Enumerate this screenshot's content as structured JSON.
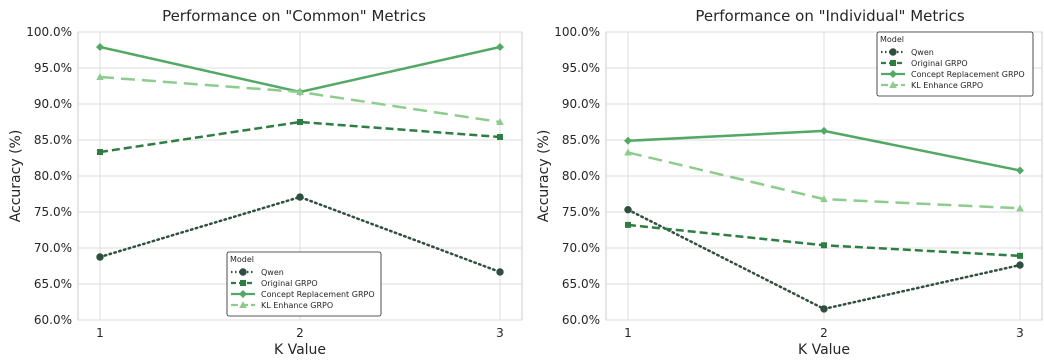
{
  "chart_data": [
    {
      "type": "line",
      "title": "Performance on \"Common\" Metrics",
      "xlabel": "K Value",
      "ylabel": "Accuracy (%)",
      "x": [
        1,
        2,
        3
      ],
      "ylim": [
        0.6,
        1.0
      ],
      "yticks": [
        "60.0%",
        "65.0%",
        "70.0%",
        "75.0%",
        "80.0%",
        "85.0%",
        "90.0%",
        "95.0%",
        "100.0%"
      ],
      "yticks_values": [
        0.6,
        0.65,
        0.7,
        0.75,
        0.8,
        0.85,
        0.9,
        0.95,
        1.0
      ],
      "xticks": [
        "1",
        "2",
        "3"
      ],
      "grid": true,
      "legend": {
        "title": "Model",
        "placement": "bottom-center"
      },
      "series": [
        {
          "name": "Qwen",
          "values": [
            0.6875,
            0.7708,
            0.6667
          ],
          "color": "#2f4f3f",
          "dash": "dotted",
          "marker": "circle"
        },
        {
          "name": "Original GRPO",
          "values": [
            0.8333,
            0.875,
            0.8542
          ],
          "color": "#2e7d43",
          "dash": "dashed",
          "marker": "square"
        },
        {
          "name": "Concept Replacement GRPO",
          "values": [
            0.9792,
            0.9167,
            0.9792
          ],
          "color": "#52a864",
          "dash": "solid",
          "marker": "diamond"
        },
        {
          "name": "KL Enhance GRPO",
          "values": [
            0.9375,
            0.9167,
            0.875
          ],
          "color": "#8ccc8c",
          "dash": "longdash",
          "marker": "triangle"
        }
      ]
    },
    {
      "type": "line",
      "title": "Performance on \"Individual\" Metrics",
      "xlabel": "K Value",
      "ylabel": "Accuracy (%)",
      "x": [
        1,
        2,
        3
      ],
      "ylim": [
        0.6,
        1.0
      ],
      "yticks": [
        "60.0%",
        "65.0%",
        "70.0%",
        "75.0%",
        "80.0%",
        "85.0%",
        "90.0%",
        "95.0%",
        "100.0%"
      ],
      "yticks_values": [
        0.6,
        0.65,
        0.7,
        0.75,
        0.8,
        0.85,
        0.9,
        0.95,
        1.0
      ],
      "xticks": [
        "1",
        "2",
        "3"
      ],
      "grid": true,
      "legend": {
        "title": "Model",
        "placement": "top-right"
      },
      "series": [
        {
          "name": "Qwen",
          "values": [
            0.7532,
            0.6154,
            0.6763
          ],
          "color": "#2f4f3f",
          "dash": "dotted",
          "marker": "circle"
        },
        {
          "name": "Original GRPO",
          "values": [
            0.7321,
            0.7038,
            0.6891
          ],
          "color": "#2e7d43",
          "dash": "dashed",
          "marker": "square"
        },
        {
          "name": "Concept Replacement GRPO",
          "values": [
            0.8489,
            0.8627,
            0.8077
          ],
          "color": "#52a864",
          "dash": "solid",
          "marker": "diamond"
        },
        {
          "name": "KL Enhance GRPO",
          "values": [
            0.8327,
            0.7679,
            0.7551
          ],
          "color": "#8ccc8c",
          "dash": "longdash",
          "marker": "triangle"
        }
      ]
    }
  ]
}
